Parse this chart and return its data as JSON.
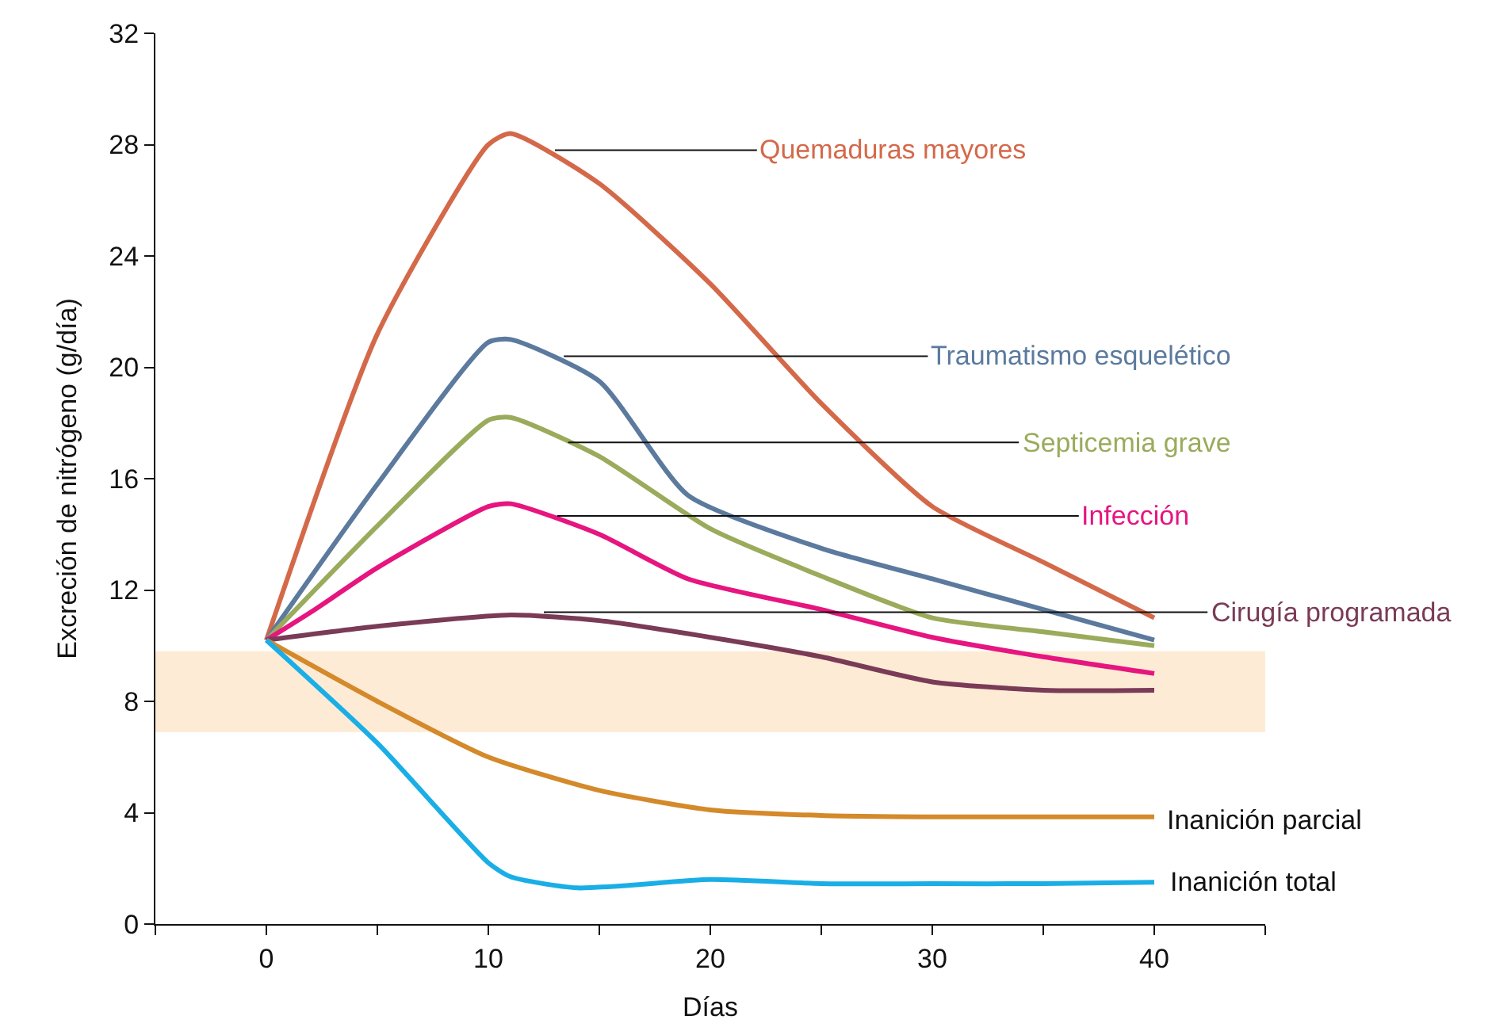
{
  "chart_data": {
    "type": "line",
    "xlabel": "Días",
    "ylabel": "Excreción de nitrógeno (g/día)",
    "xlim": [
      -5,
      45
    ],
    "ylim": [
      0,
      32
    ],
    "xticks": [
      {
        "value": -5,
        "label": null
      },
      0,
      {
        "value": 5,
        "label": null
      },
      10,
      {
        "value": 15,
        "label": null
      },
      20,
      {
        "value": 25,
        "label": null
      },
      30,
      {
        "value": 35,
        "label": null
      },
      40,
      {
        "value": 45,
        "label": null
      }
    ],
    "yticks": [
      0,
      4,
      8,
      12,
      16,
      20,
      24,
      28,
      32
    ],
    "grid": false,
    "legend": false,
    "marker": "none",
    "line_style": "solid",
    "bands": [
      {
        "axis": "y",
        "from": 6.9,
        "to": 9.8,
        "color": "#fdebd5"
      }
    ],
    "series": [
      {
        "name": "Quemaduras mayores",
        "color": "#d4694a",
        "x": [
          0,
          5,
          10,
          11,
          15,
          20,
          25,
          30,
          35,
          40
        ],
        "values": [
          10.2,
          21.2,
          28.0,
          28.4,
          26.6,
          23.0,
          18.7,
          15.0,
          13.0,
          11.0
        ]
      },
      {
        "name": "Traumatismo esquelético",
        "color": "#5b7a9e",
        "x": [
          0,
          5,
          10,
          11,
          15,
          19,
          25,
          30,
          35,
          40
        ],
        "values": [
          10.2,
          15.8,
          20.9,
          21.0,
          19.5,
          15.4,
          13.5,
          12.4,
          11.3,
          10.2
        ]
      },
      {
        "name": "Septicemia grave",
        "color": "#9aab5c",
        "x": [
          0,
          5,
          10,
          11,
          15,
          20,
          25,
          30,
          35,
          40
        ],
        "values": [
          10.2,
          14.3,
          18.1,
          18.2,
          16.8,
          14.2,
          12.5,
          11.0,
          10.5,
          10.0
        ]
      },
      {
        "name": "Infección",
        "color": "#e6157f",
        "x": [
          0,
          2,
          5,
          10,
          11,
          15,
          19,
          25,
          30,
          35,
          40
        ],
        "values": [
          10.2,
          11.2,
          12.8,
          15.0,
          15.1,
          14.0,
          12.4,
          11.3,
          10.3,
          9.6,
          9.0
        ]
      },
      {
        "name": "Cirugía programada",
        "color": "#7a3b57",
        "x": [
          0,
          5,
          11,
          15,
          20,
          25,
          30,
          35,
          40
        ],
        "values": [
          10.2,
          10.7,
          11.1,
          10.9,
          10.3,
          9.6,
          8.7,
          8.4,
          8.4
        ]
      },
      {
        "name": "Inanición parcial",
        "color": "#d4892a",
        "x": [
          0,
          5,
          10,
          15,
          20,
          25,
          30,
          40
        ],
        "values": [
          10.2,
          8.0,
          6.0,
          4.8,
          4.1,
          3.9,
          3.85,
          3.85
        ]
      },
      {
        "name": "Inanición total",
        "color": "#1aaee6",
        "x": [
          0,
          5,
          10,
          11,
          14,
          20,
          25,
          30,
          35,
          40
        ],
        "values": [
          10.2,
          6.5,
          2.2,
          1.7,
          1.3,
          1.6,
          1.45,
          1.45,
          1.45,
          1.5
        ]
      }
    ]
  }
}
